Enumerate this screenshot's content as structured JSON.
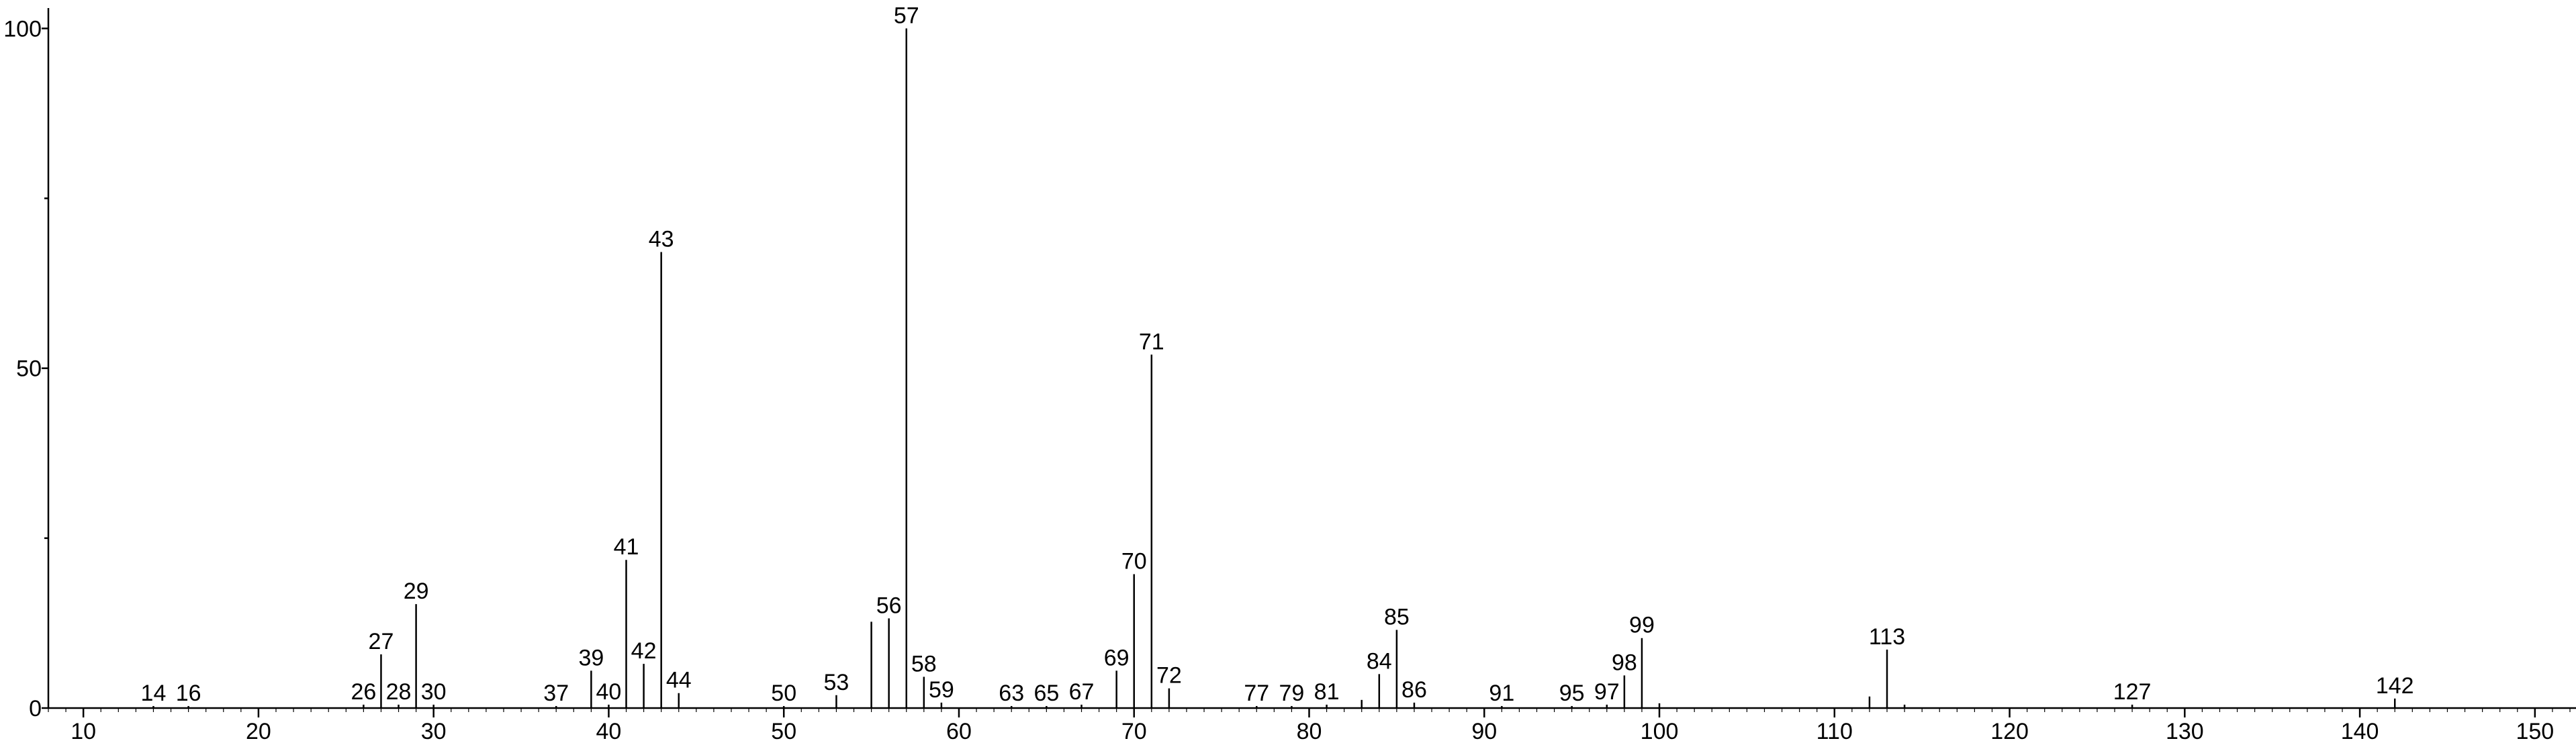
{
  "chart_data": {
    "type": "stem",
    "x": [
      14,
      16,
      26,
      27,
      28,
      29,
      30,
      37,
      39,
      40,
      41,
      42,
      43,
      44,
      50,
      53,
      55,
      56,
      57,
      58,
      59,
      63,
      65,
      67,
      69,
      70,
      71,
      72,
      77,
      79,
      81,
      83,
      84,
      85,
      86,
      91,
      95,
      97,
      98,
      99,
      100,
      112,
      113,
      114,
      127,
      142
    ],
    "values": [
      0.3,
      0.3,
      0.5,
      7.9,
      0.5,
      15.3,
      0.5,
      0.3,
      5.5,
      0.5,
      21.8,
      6.5,
      67.1,
      2.2,
      0.3,
      1.9,
      12.7,
      13.2,
      100,
      4.6,
      0.8,
      0.3,
      0.3,
      0.5,
      5.5,
      19.7,
      52.0,
      2.9,
      0.3,
      0.3,
      0.5,
      1.2,
      5.0,
      11.5,
      0.8,
      0.3,
      0.3,
      0.5,
      4.8,
      10.3,
      0.7,
      1.7,
      8.6,
      0.5,
      0.5,
      1.4
    ],
    "peak_labels": [
      14,
      16,
      26,
      27,
      28,
      29,
      30,
      37,
      39,
      40,
      41,
      42,
      43,
      44,
      50,
      53,
      null,
      56,
      57,
      58,
      59,
      63,
      65,
      67,
      69,
      70,
      71,
      72,
      77,
      79,
      81,
      null,
      84,
      85,
      86,
      91,
      95,
      97,
      98,
      99,
      null,
      null,
      113,
      null,
      127,
      142
    ],
    "color": "#000000",
    "xlim": [
      8,
      152
    ],
    "xticks": [
      10,
      20,
      30,
      40,
      50,
      60,
      70,
      80,
      90,
      100,
      110,
      120,
      130,
      140,
      150
    ],
    "xminor_step": 1,
    "ylim": [
      0,
      103
    ],
    "yticks": [
      0,
      50,
      100
    ],
    "yminorticks": [
      25,
      75
    ]
  }
}
